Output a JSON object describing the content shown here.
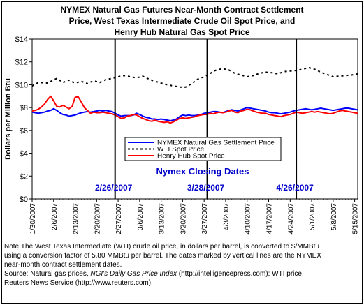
{
  "title_lines": [
    "NYMEX Natural Gas Futures Near-Month Contract Settlement",
    "Price, West Texas Intermediate Crude Oil Spot Price, and",
    "Henry Hub Natural Gas Spot Price"
  ],
  "note_lines": [
    "Note:The West Texas Intermediate (WTI) crude oil price, in dollars per barrel,  is converted to $/MMBtu",
    "using a conversion factor of 5.80 MMBtu per barrel.  The dates marked by vertical lines are the NYMEX",
    "near-month contract settlement dates."
  ],
  "source": {
    "prefix": "Source: Natural gas prices, ",
    "italic": "NGI's Daily Gas Price Index",
    "suffix": " (http://intelligencepress.com); WTI price,",
    "line2": "Reuters News Service (http://www.reuters.com)."
  },
  "colors": {
    "nymex": "#0000ff",
    "wti": "#000000",
    "henry": "#ff0000",
    "closing_label": "#0000cc",
    "vline": "#000000"
  },
  "chart_data": {
    "type": "line",
    "ylabel": "Dollars per Million Btu",
    "ylim": [
      0,
      14
    ],
    "y_ticks": [
      "$0",
      "$2",
      "$4",
      "$6",
      "$8",
      "$10",
      "$12",
      "$14"
    ],
    "x_tick_labels": [
      "1/30/2007",
      "2/6/2007",
      "2/13/2007",
      "2/20/2007",
      "2/27/2007",
      "3/6/2007",
      "3/13/2007",
      "3/20/2007",
      "3/27/2007",
      "4/3/2007",
      "4/10/2007",
      "4/17/2007",
      "4/24/2007",
      "5/1/2007",
      "5/8/2007",
      "5/15/2007"
    ],
    "x_days": 107,
    "closing_dates_label": "Nymex Closing Dates",
    "closing_dates": [
      {
        "label": "2/26/2007",
        "day": 27
      },
      {
        "label": "3/28/2007",
        "day": 57
      },
      {
        "label": "4/26/2007",
        "day": 86
      }
    ],
    "legend": [
      {
        "key": "nymex",
        "label": "NYMEX Natural Gas Settlement Price"
      },
      {
        "key": "wti",
        "label": "WTI Spot Price"
      },
      {
        "key": "henry",
        "label": "Henry Hub Spot Price"
      }
    ],
    "series": [
      {
        "key": "nymex",
        "name": "NYMEX Natural Gas Settlement Price",
        "points": [
          [
            0,
            7.6
          ],
          [
            1,
            7.55
          ],
          [
            2,
            7.5
          ],
          [
            3,
            7.55
          ],
          [
            4,
            7.6
          ],
          [
            5,
            7.7
          ],
          [
            6,
            7.75
          ],
          [
            7,
            7.9
          ],
          [
            8,
            7.75
          ],
          [
            9,
            7.55
          ],
          [
            10,
            7.4
          ],
          [
            11,
            7.35
          ],
          [
            12,
            7.25
          ],
          [
            13,
            7.3
          ],
          [
            14,
            7.35
          ],
          [
            15,
            7.45
          ],
          [
            16,
            7.55
          ],
          [
            17,
            7.6
          ],
          [
            18,
            7.65
          ],
          [
            19,
            7.6
          ],
          [
            20,
            7.65
          ],
          [
            21,
            7.7
          ],
          [
            22,
            7.75
          ],
          [
            23,
            7.7
          ],
          [
            24,
            7.75
          ],
          [
            25,
            7.7
          ],
          [
            26,
            7.65
          ],
          [
            27,
            7.5
          ],
          [
            28,
            7.35
          ],
          [
            29,
            7.25
          ],
          [
            30,
            7.3
          ],
          [
            31,
            7.3
          ],
          [
            32,
            7.3
          ],
          [
            33,
            7.35
          ],
          [
            34,
            7.5
          ],
          [
            35,
            7.4
          ],
          [
            36,
            7.25
          ],
          [
            37,
            7.15
          ],
          [
            38,
            7.1
          ],
          [
            39,
            7.0
          ],
          [
            40,
            7.0
          ],
          [
            41,
            6.95
          ],
          [
            42,
            7.0
          ],
          [
            43,
            6.95
          ],
          [
            44,
            6.9
          ],
          [
            45,
            6.85
          ],
          [
            46,
            6.9
          ],
          [
            47,
            7.0
          ],
          [
            48,
            7.2
          ],
          [
            49,
            7.35
          ],
          [
            50,
            7.3
          ],
          [
            51,
            7.35
          ],
          [
            52,
            7.3
          ],
          [
            53,
            7.3
          ],
          [
            54,
            7.35
          ],
          [
            55,
            7.4
          ],
          [
            56,
            7.5
          ],
          [
            57,
            7.55
          ],
          [
            58,
            7.6
          ],
          [
            59,
            7.65
          ],
          [
            60,
            7.65
          ],
          [
            61,
            7.6
          ],
          [
            62,
            7.55
          ],
          [
            63,
            7.65
          ],
          [
            64,
            7.75
          ],
          [
            65,
            7.8
          ],
          [
            66,
            7.75
          ],
          [
            67,
            7.7
          ],
          [
            68,
            7.8
          ],
          [
            69,
            7.9
          ],
          [
            70,
            8.0
          ],
          [
            71,
            7.95
          ],
          [
            72,
            7.9
          ],
          [
            73,
            7.85
          ],
          [
            74,
            7.8
          ],
          [
            75,
            7.75
          ],
          [
            76,
            7.7
          ],
          [
            77,
            7.6
          ],
          [
            78,
            7.55
          ],
          [
            79,
            7.55
          ],
          [
            80,
            7.5
          ],
          [
            81,
            7.45
          ],
          [
            82,
            7.5
          ],
          [
            83,
            7.55
          ],
          [
            84,
            7.6
          ],
          [
            85,
            7.7
          ],
          [
            86,
            7.75
          ],
          [
            87,
            7.8
          ],
          [
            88,
            7.85
          ],
          [
            89,
            7.9
          ],
          [
            90,
            7.85
          ],
          [
            91,
            7.8
          ],
          [
            92,
            7.85
          ],
          [
            93,
            7.9
          ],
          [
            94,
            7.95
          ],
          [
            95,
            7.9
          ],
          [
            96,
            7.85
          ],
          [
            97,
            7.8
          ],
          [
            98,
            7.75
          ],
          [
            99,
            7.8
          ],
          [
            100,
            7.85
          ],
          [
            101,
            7.9
          ],
          [
            102,
            7.95
          ],
          [
            103,
            7.95
          ],
          [
            104,
            7.9
          ],
          [
            105,
            7.85
          ],
          [
            106,
            7.8
          ]
        ]
      },
      {
        "key": "wti",
        "name": "WTI Spot Price",
        "points": [
          [
            0,
            9.9
          ],
          [
            2,
            10.2
          ],
          [
            5,
            10.15
          ],
          [
            8,
            10.55
          ],
          [
            10,
            10.2
          ],
          [
            12,
            10.4
          ],
          [
            14,
            10.15
          ],
          [
            16,
            10.3
          ],
          [
            18,
            10.1
          ],
          [
            20,
            10.35
          ],
          [
            22,
            10.2
          ],
          [
            24,
            10.45
          ],
          [
            26,
            10.55
          ],
          [
            28,
            10.7
          ],
          [
            30,
            10.8
          ],
          [
            32,
            10.7
          ],
          [
            34,
            10.6
          ],
          [
            36,
            10.75
          ],
          [
            38,
            10.5
          ],
          [
            40,
            10.3
          ],
          [
            42,
            10.15
          ],
          [
            44,
            10.0
          ],
          [
            46,
            9.9
          ],
          [
            48,
            9.8
          ],
          [
            50,
            9.8
          ],
          [
            52,
            10.1
          ],
          [
            54,
            10.5
          ],
          [
            56,
            10.7
          ],
          [
            58,
            11.0
          ],
          [
            60,
            11.3
          ],
          [
            62,
            11.4
          ],
          [
            64,
            11.3
          ],
          [
            66,
            11.0
          ],
          [
            68,
            10.85
          ],
          [
            70,
            10.7
          ],
          [
            72,
            10.8
          ],
          [
            74,
            11.0
          ],
          [
            76,
            11.1
          ],
          [
            78,
            11.05
          ],
          [
            80,
            10.95
          ],
          [
            82,
            11.15
          ],
          [
            84,
            11.2
          ],
          [
            86,
            11.25
          ],
          [
            88,
            11.35
          ],
          [
            90,
            11.5
          ],
          [
            92,
            11.35
          ],
          [
            94,
            11.1
          ],
          [
            96,
            10.9
          ],
          [
            98,
            10.7
          ],
          [
            100,
            10.75
          ],
          [
            102,
            10.8
          ],
          [
            104,
            10.85
          ],
          [
            106,
            10.95
          ]
        ]
      },
      {
        "key": "henry",
        "name": "Henry Hub Spot Price",
        "points": [
          [
            0,
            7.7
          ],
          [
            1,
            7.75
          ],
          [
            2,
            7.85
          ],
          [
            3,
            8.05
          ],
          [
            4,
            8.3
          ],
          [
            5,
            8.7
          ],
          [
            6,
            9.0
          ],
          [
            7,
            8.6
          ],
          [
            8,
            8.1
          ],
          [
            9,
            8.05
          ],
          [
            10,
            8.2
          ],
          [
            11,
            8.05
          ],
          [
            12,
            7.9
          ],
          [
            13,
            8.1
          ],
          [
            14,
            8.9
          ],
          [
            15,
            8.95
          ],
          [
            16,
            8.5
          ],
          [
            17,
            8.0
          ],
          [
            18,
            7.75
          ],
          [
            19,
            7.5
          ],
          [
            20,
            7.6
          ],
          [
            21,
            7.55
          ],
          [
            22,
            7.55
          ],
          [
            23,
            7.6
          ],
          [
            24,
            7.55
          ],
          [
            25,
            7.5
          ],
          [
            26,
            7.45
          ],
          [
            27,
            7.35
          ],
          [
            28,
            7.2
          ],
          [
            29,
            7.05
          ],
          [
            30,
            7.1
          ],
          [
            31,
            7.25
          ],
          [
            32,
            7.3
          ],
          [
            33,
            7.4
          ],
          [
            34,
            7.35
          ],
          [
            35,
            7.2
          ],
          [
            36,
            7.05
          ],
          [
            37,
            6.95
          ],
          [
            38,
            6.85
          ],
          [
            39,
            6.8
          ],
          [
            40,
            6.9
          ],
          [
            41,
            6.8
          ],
          [
            42,
            6.75
          ],
          [
            43,
            6.7
          ],
          [
            44,
            6.75
          ],
          [
            45,
            6.65
          ],
          [
            46,
            6.75
          ],
          [
            47,
            6.9
          ],
          [
            48,
            7.05
          ],
          [
            49,
            7.1
          ],
          [
            50,
            7.05
          ],
          [
            51,
            7.1
          ],
          [
            52,
            7.15
          ],
          [
            53,
            7.2
          ],
          [
            54,
            7.3
          ],
          [
            55,
            7.35
          ],
          [
            56,
            7.4
          ],
          [
            57,
            7.4
          ],
          [
            58,
            7.5
          ],
          [
            59,
            7.45
          ],
          [
            60,
            7.55
          ],
          [
            61,
            7.6
          ],
          [
            62,
            7.55
          ],
          [
            63,
            7.6
          ],
          [
            64,
            7.7
          ],
          [
            65,
            7.75
          ],
          [
            66,
            7.6
          ],
          [
            67,
            7.55
          ],
          [
            68,
            7.7
          ],
          [
            69,
            7.75
          ],
          [
            70,
            7.85
          ],
          [
            71,
            7.8
          ],
          [
            72,
            7.7
          ],
          [
            73,
            7.6
          ],
          [
            74,
            7.55
          ],
          [
            75,
            7.5
          ],
          [
            76,
            7.5
          ],
          [
            77,
            7.4
          ],
          [
            78,
            7.35
          ],
          [
            79,
            7.3
          ],
          [
            80,
            7.25
          ],
          [
            81,
            7.2
          ],
          [
            82,
            7.3
          ],
          [
            83,
            7.35
          ],
          [
            84,
            7.4
          ],
          [
            85,
            7.5
          ],
          [
            86,
            7.6
          ],
          [
            87,
            7.55
          ],
          [
            88,
            7.5
          ],
          [
            89,
            7.55
          ],
          [
            90,
            7.6
          ],
          [
            91,
            7.65
          ],
          [
            92,
            7.6
          ],
          [
            93,
            7.65
          ],
          [
            94,
            7.6
          ],
          [
            95,
            7.55
          ],
          [
            96,
            7.5
          ],
          [
            97,
            7.45
          ],
          [
            98,
            7.5
          ],
          [
            99,
            7.6
          ],
          [
            100,
            7.7
          ],
          [
            101,
            7.75
          ],
          [
            102,
            7.7
          ],
          [
            103,
            7.65
          ],
          [
            104,
            7.6
          ],
          [
            105,
            7.55
          ],
          [
            106,
            7.5
          ]
        ]
      }
    ]
  }
}
